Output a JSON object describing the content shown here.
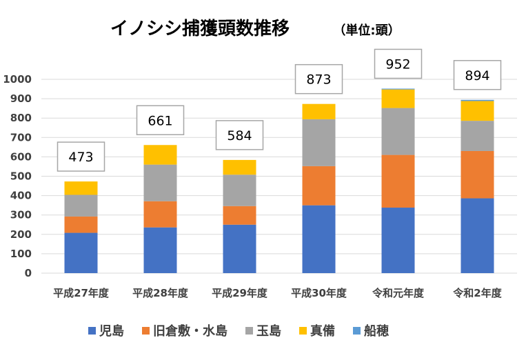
{
  "chart_data": {
    "type": "bar",
    "stacked": true,
    "title": "イノシシ捕獲頭数推移",
    "unit": "（単位:頭）",
    "categories": [
      "平成27年度",
      "平成28年度",
      "平成29年度",
      "平成30年度",
      "令和元年度",
      "令和2年度"
    ],
    "series": [
      {
        "name": "児島",
        "color": "#4472C4",
        "values": [
          208,
          236,
          250,
          350,
          338,
          386
        ]
      },
      {
        "name": "旧倉敷・水島",
        "color": "#ED7D31",
        "values": [
          84,
          135,
          96,
          202,
          272,
          244
        ]
      },
      {
        "name": "玉島",
        "color": "#A5A5A5",
        "values": [
          112,
          189,
          162,
          242,
          242,
          156
        ]
      },
      {
        "name": "真備",
        "color": "#FFC000",
        "values": [
          69,
          101,
          76,
          79,
          96,
          102
        ]
      },
      {
        "name": "船穂",
        "color": "#5B9BD5",
        "values": [
          0,
          0,
          0,
          0,
          4,
          6
        ]
      }
    ],
    "totals": [
      "473",
      "661",
      "584",
      "873",
      "952",
      "894"
    ],
    "ylim": [
      0,
      1000
    ],
    "yticks": [
      "0",
      "100",
      "200",
      "300",
      "400",
      "500",
      "600",
      "700",
      "800",
      "900",
      "1000"
    ],
    "grid": true,
    "legend": "bottom"
  }
}
